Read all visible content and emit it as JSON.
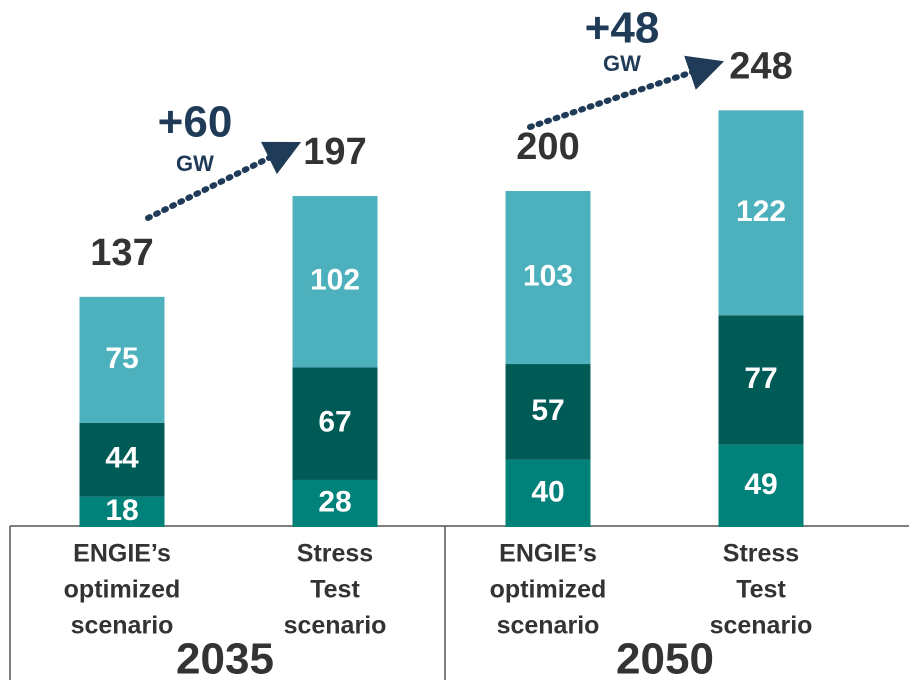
{
  "chart_data": {
    "type": "stacked_bar",
    "categories": [
      [
        "ENGIE’s",
        "optimized",
        "scenario"
      ],
      [
        "Stress",
        "Test",
        "scenario"
      ],
      [
        "ENGIE’s",
        "optimized",
        "scenario"
      ],
      [
        "Stress",
        "Test",
        "scenario"
      ]
    ],
    "groups": [
      "2035",
      "2050"
    ],
    "series": [
      {
        "color": "#00827a",
        "values": [
          18,
          28,
          40,
          49
        ]
      },
      {
        "color": "#005b57",
        "values": [
          44,
          67,
          57,
          77
        ]
      },
      {
        "color": "#4db1bd",
        "values": [
          75,
          102,
          103,
          122
        ]
      }
    ],
    "totals": [
      137,
      197,
      200,
      248
    ],
    "annotations": [
      {
        "text": "+60",
        "unit": "GW"
      },
      {
        "text": "+48",
        "unit": "GW"
      }
    ],
    "ylim": [
      0,
      250
    ]
  }
}
